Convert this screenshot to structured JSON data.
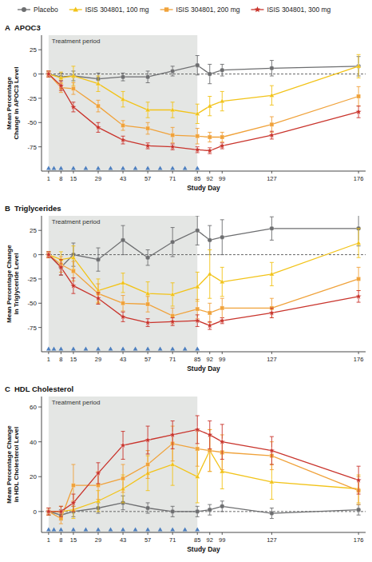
{
  "chart_data": [
    {
      "type": "line",
      "panel": "A",
      "title": "APOC3",
      "x_label": "Study Day",
      "y_label": "Mean Percentage Change in APOC3 Level",
      "legend": "top",
      "grid": false,
      "reference_y": 0,
      "x": [
        1,
        8,
        15,
        29,
        43,
        57,
        71,
        85,
        92,
        99,
        127,
        176
      ],
      "xlim": [
        -3,
        180
      ],
      "xticks": [
        1,
        8,
        15,
        29,
        43,
        57,
        71,
        85,
        92,
        99,
        127,
        176
      ],
      "ylim": [
        -100,
        40
      ],
      "yticks": [
        -75,
        -50,
        -25,
        0,
        25
      ],
      "treatment_period": {
        "label": "Treatment period",
        "x": [
          1,
          85
        ]
      },
      "dosing_days": [
        1,
        4,
        8,
        15,
        22,
        29,
        36,
        43,
        50,
        57,
        64,
        71,
        78,
        85
      ],
      "series": [
        {
          "name": "Placebo",
          "color": "#6d6e70",
          "marker": "circle",
          "values": [
            0,
            -3,
            -2,
            -5,
            -3,
            -3,
            3,
            9,
            0,
            4,
            6,
            8
          ],
          "errors": [
            3,
            4,
            5,
            6,
            4,
            6,
            5,
            10,
            10,
            6,
            8,
            10
          ]
        },
        {
          "name": "ISIS 304801, 100 mg",
          "color": "#f2c318",
          "marker": "triangle",
          "values": [
            0,
            -4,
            -2,
            -10,
            -26,
            -37,
            -37,
            -41,
            -33,
            -28,
            -22,
            8
          ],
          "errors": [
            3,
            6,
            10,
            8,
            8,
            8,
            8,
            10,
            10,
            10,
            10,
            12
          ]
        },
        {
          "name": "ISIS 304801, 200 mg",
          "color": "#f0a23a",
          "marker": "square",
          "values": [
            0,
            -14,
            -15,
            -33,
            -53,
            -56,
            -63,
            -64,
            -65,
            -65,
            -52,
            -23
          ],
          "errors": [
            3,
            5,
            6,
            6,
            5,
            6,
            8,
            8,
            5,
            5,
            8,
            10
          ]
        },
        {
          "name": "ISIS 304801, 300 mg",
          "color": "#c9342c",
          "marker": "star",
          "values": [
            0,
            -12,
            -34,
            -55,
            -68,
            -74,
            -75,
            -78,
            -79,
            -74,
            -63,
            -39
          ],
          "errors": [
            3,
            5,
            5,
            5,
            4,
            3,
            3,
            3,
            3,
            3,
            4,
            6
          ]
        }
      ]
    },
    {
      "type": "line",
      "panel": "B",
      "title": "Triglycerides",
      "x_label": "Study Day",
      "y_label": "Mean Percentage Change in Triglyceride Level",
      "grid": false,
      "reference_y": 0,
      "x": [
        1,
        8,
        15,
        29,
        43,
        57,
        71,
        85,
        92,
        99,
        127,
        176
      ],
      "xlim": [
        -3,
        180
      ],
      "xticks": [
        1,
        8,
        15,
        29,
        43,
        57,
        71,
        85,
        92,
        99,
        127,
        176
      ],
      "ylim": [
        -100,
        40
      ],
      "yticks": [
        -75,
        -50,
        -25,
        0,
        25
      ],
      "treatment_period": {
        "label": "Treatment period",
        "x": [
          1,
          85
        ]
      },
      "dosing_days": [
        1,
        4,
        8,
        15,
        22,
        29,
        36,
        43,
        50,
        57,
        64,
        71,
        78,
        85
      ],
      "series": [
        {
          "name": "Placebo",
          "color": "#6d6e70",
          "marker": "circle",
          "values": [
            0,
            -13,
            0,
            -5,
            15,
            -3,
            13,
            25,
            15,
            18,
            27,
            27
          ],
          "errors": [
            3,
            8,
            12,
            12,
            15,
            8,
            15,
            15,
            15,
            18,
            12,
            18
          ]
        },
        {
          "name": "ISIS 304801, 100 mg",
          "color": "#f2c318",
          "marker": "triangle",
          "values": [
            0,
            -5,
            -3,
            -37,
            -29,
            -40,
            -41,
            -33,
            -20,
            -28,
            -20,
            12
          ],
          "errors": [
            3,
            8,
            12,
            12,
            10,
            12,
            12,
            15,
            25,
            15,
            12,
            15
          ]
        },
        {
          "name": "ISIS 304801, 200 mg",
          "color": "#f0a23a",
          "marker": "square",
          "values": [
            0,
            -10,
            -17,
            -40,
            -50,
            -51,
            -63,
            -56,
            -60,
            -55,
            -55,
            -25
          ],
          "errors": [
            3,
            8,
            10,
            10,
            8,
            8,
            8,
            10,
            10,
            10,
            10,
            12
          ]
        },
        {
          "name": "ISIS 304801, 300 mg",
          "color": "#c9342c",
          "marker": "star",
          "values": [
            0,
            -13,
            -32,
            -45,
            -64,
            -70,
            -69,
            -68,
            -73,
            -68,
            -60,
            -43
          ],
          "errors": [
            3,
            8,
            8,
            6,
            5,
            4,
            4,
            6,
            4,
            3,
            5,
            6
          ]
        }
      ]
    },
    {
      "type": "line",
      "panel": "C",
      "title": "HDL Cholesterol",
      "x_label": "Study Day",
      "y_label": "Mean Percentage Change in HDL Cholesterol Level",
      "grid": false,
      "reference_y": 0,
      "x": [
        1,
        8,
        15,
        29,
        43,
        57,
        71,
        85,
        92,
        99,
        127,
        176
      ],
      "xlim": [
        -3,
        180
      ],
      "xticks": [
        1,
        8,
        15,
        29,
        43,
        57,
        71,
        85,
        92,
        99,
        127,
        176
      ],
      "ylim": [
        -12,
        66
      ],
      "yticks": [
        0,
        20,
        40,
        60
      ],
      "treatment_period": {
        "label": "Treatment period",
        "x": [
          1,
          85
        ]
      },
      "dosing_days": [
        1,
        4,
        8,
        15,
        22,
        29,
        36,
        43,
        50,
        57,
        64,
        71,
        78,
        85
      ],
      "series": [
        {
          "name": "Placebo",
          "color": "#6d6e70",
          "marker": "circle",
          "values": [
            0,
            -2,
            0,
            2,
            5,
            2,
            0,
            0,
            1,
            3,
            -1,
            1
          ],
          "errors": [
            2,
            3,
            3,
            3,
            4,
            3,
            3,
            3,
            3,
            3,
            3,
            3
          ]
        },
        {
          "name": "ISIS 304801, 100 mg",
          "color": "#f2c318",
          "marker": "triangle",
          "values": [
            0,
            0,
            1,
            6,
            13,
            22,
            27,
            20,
            35,
            23,
            17,
            13
          ],
          "errors": [
            2,
            3,
            5,
            6,
            8,
            10,
            12,
            15,
            12,
            10,
            10,
            8
          ]
        },
        {
          "name": "ISIS 304801, 200 mg",
          "color": "#f0a23a",
          "marker": "square",
          "values": [
            0,
            -4,
            15,
            15,
            19,
            27,
            39,
            36,
            35,
            34,
            32,
            12
          ],
          "errors": [
            2,
            3,
            12,
            8,
            8,
            8,
            10,
            10,
            12,
            10,
            8,
            8
          ]
        },
        {
          "name": "ISIS 304801, 300 mg",
          "color": "#c9342c",
          "marker": "star",
          "values": [
            0,
            0,
            5,
            22,
            38,
            41,
            44,
            47,
            44,
            40,
            35,
            18
          ],
          "errors": [
            2,
            3,
            5,
            6,
            8,
            8,
            8,
            8,
            8,
            10,
            8,
            8
          ]
        }
      ]
    }
  ]
}
